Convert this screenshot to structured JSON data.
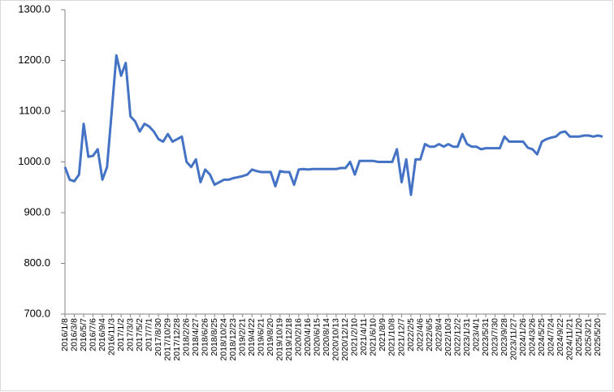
{
  "chart_data": {
    "type": "line",
    "categories": [
      "2016/1/8",
      null,
      "2016/3/8",
      null,
      "2016/5/7",
      null,
      "2016/7/6",
      null,
      "2016/9/4",
      null,
      "2016/11/3",
      null,
      "2017/1/2",
      null,
      "2017/3/3",
      null,
      "2017/5/2",
      null,
      "2017/7/1",
      null,
      "2017/8/30",
      null,
      "2017/10/29",
      null,
      "2017/12/28",
      null,
      "2018/2/26",
      null,
      "2018/4/27",
      null,
      "2018/6/26",
      null,
      "2018/8/25",
      null,
      "2018/10/24",
      null,
      "2018/12/23",
      null,
      "2019/2/21",
      null,
      "2019/4/22",
      null,
      "2019/6/21",
      null,
      "2019/8/20",
      null,
      "2019/10/19",
      null,
      "2019/12/18",
      null,
      "2020/2/16",
      null,
      "2020/4/16",
      null,
      "2020/6/15",
      null,
      "2020/8/14",
      null,
      "2020/10/13",
      null,
      "2020/12/12",
      null,
      "2021/2/10",
      null,
      "2021/4/11",
      null,
      "2021/6/10",
      null,
      "2021/8/9",
      null,
      "2021/10/8",
      null,
      "2021/12/7",
      null,
      "2022/2/5",
      null,
      "2022/4/6",
      null,
      "2022/6/5",
      null,
      "2022/8/4",
      null,
      "2022/10/3",
      null,
      "2022/12/2",
      null,
      "2023/1/31",
      null,
      "2023/4/1",
      null,
      "2023/5/31",
      null,
      "2023/7/30",
      null,
      "2023/9/28",
      null,
      "2023/11/27",
      null,
      "2024/1/26",
      null,
      "2024/3/26",
      null,
      "2024/5/25",
      null,
      "2024/7/24",
      null,
      "2024/9/22",
      null,
      "2024/11/21",
      null,
      "2025/1/20",
      null,
      "2025/3/21",
      null,
      "2025/5/20",
      null
    ],
    "values": [
      990,
      965,
      962,
      975,
      1075,
      1010,
      1012,
      1025,
      965,
      990,
      1100,
      1210,
      1170,
      1195,
      1090,
      1080,
      1060,
      1075,
      1070,
      1060,
      1045,
      1040,
      1055,
      1040,
      1045,
      1050,
      1000,
      990,
      1005,
      960,
      985,
      975,
      955,
      960,
      965,
      965,
      968,
      970,
      972,
      975,
      985,
      982,
      980,
      980,
      980,
      952,
      982,
      980,
      980,
      955,
      985,
      986,
      985,
      986,
      986,
      986,
      986,
      986,
      986,
      988,
      988,
      1000,
      975,
      1002,
      1002,
      1002,
      1002,
      1000,
      1000,
      1000,
      1000,
      1025,
      960,
      1005,
      935,
      1005,
      1005,
      1035,
      1030,
      1030,
      1035,
      1030,
      1035,
      1030,
      1030,
      1055,
      1035,
      1030,
      1030,
      1025,
      1027,
      1027,
      1027,
      1027,
      1050,
      1040,
      1040,
      1040,
      1040,
      1028,
      1025,
      1015,
      1040,
      1045,
      1048,
      1050,
      1058,
      1060,
      1050,
      1050,
      1050,
      1052,
      1052,
      1050,
      1052,
      1050
    ],
    "color": "#4472c4",
    "ylim": [
      700,
      1300
    ],
    "yticks": [
      {
        "value": 700,
        "label": "700.0"
      },
      {
        "value": 800,
        "label": "800.0"
      },
      {
        "value": 900,
        "label": "900.0"
      },
      {
        "value": 1000,
        "label": "1000.0"
      },
      {
        "value": 1100,
        "label": "1100.0"
      },
      {
        "value": 1200,
        "label": "1200.0"
      },
      {
        "value": 1300,
        "label": "1300.0"
      }
    ],
    "grid": false
  }
}
